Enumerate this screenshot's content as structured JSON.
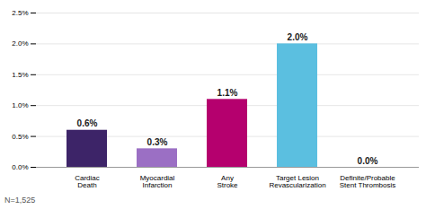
{
  "chart_data": {
    "type": "bar",
    "categories": [
      "Cardiac\nDeath",
      "Myocardial\nInfarction",
      "Any\nStroke",
      "Target Lesion\nRevascularization",
      "Definite/Probable\nStent Thrombosis"
    ],
    "values": [
      0.6,
      0.3,
      1.1,
      2.0,
      0.0
    ],
    "value_labels": [
      "0.6%",
      "0.3%",
      "1.1%",
      "2.0%",
      "0.0%"
    ],
    "data_labels": true,
    "colors": [
      "#3d2468",
      "#9b6fc4",
      "#b5006e",
      "#5bbfe0",
      "#5bbfe0"
    ],
    "ylim": [
      0,
      2.5
    ],
    "yticks": [
      {
        "value": 0.0,
        "label": "0.0%"
      },
      {
        "value": 0.5,
        "label": "0.5%"
      },
      {
        "value": 1.0,
        "label": "1.0%"
      },
      {
        "value": 1.5,
        "label": "1.5%"
      },
      {
        "value": 2.0,
        "label": "2.0%"
      },
      {
        "value": 2.5,
        "label": "2.5%"
      }
    ],
    "grid": true,
    "annotations": [
      "N=1,525"
    ]
  }
}
